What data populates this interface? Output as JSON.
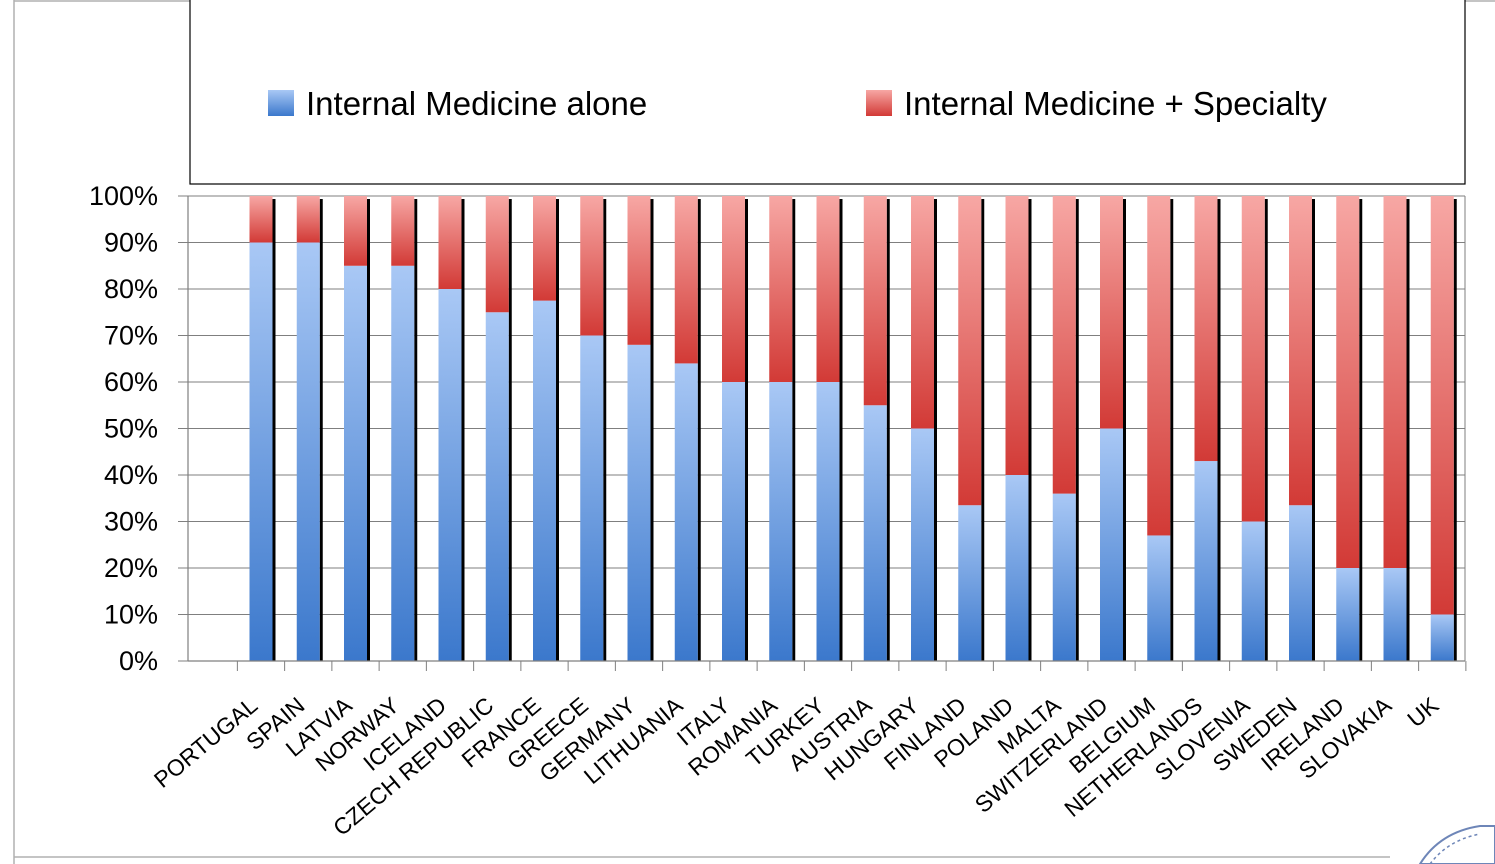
{
  "chart_data": {
    "type": "bar",
    "stacked": true,
    "percent_stacked": true,
    "categories": [
      "PORTUGAL",
      "SPAIN",
      "LATVIA",
      "NORWAY",
      "ICELAND",
      "CZECH REPUBLIC",
      "FRANCE",
      "GREECE",
      "GERMANY",
      "LITHUANIA",
      "ITALY",
      "ROMANIA",
      "TURKEY",
      "AUSTRIA",
      "HUNGARY",
      "FINLAND",
      "POLAND",
      "MALTA",
      "SWITZERLAND",
      "BELGIUM",
      "NETHERLANDS",
      "SLOVENIA",
      "SWEDEN",
      "IRELAND",
      "SLOVAKIA",
      "UK"
    ],
    "series": [
      {
        "name": "Internal Medicine alone",
        "color": "#4f81bd",
        "values": [
          90,
          90,
          85,
          85,
          80,
          75,
          77.5,
          70,
          68,
          64,
          60,
          60,
          60,
          55,
          50,
          33.5,
          40,
          36,
          50,
          27,
          43,
          30,
          33.5,
          20,
          20,
          10
        ]
      },
      {
        "name": "Internal Medicine + Specialty",
        "color": "#c0504d",
        "values": [
          10,
          10,
          15,
          15,
          20,
          25,
          22.5,
          30,
          32,
          36,
          40,
          40,
          40,
          45,
          50,
          66.5,
          60,
          64,
          50,
          73,
          57,
          70,
          66.5,
          80,
          80,
          90
        ]
      }
    ],
    "y_ticks": [
      "0%",
      "10%",
      "20%",
      "30%",
      "40%",
      "50%",
      "60%",
      "70%",
      "80%",
      "90%",
      "100%"
    ],
    "ylim": [
      0,
      100
    ],
    "grid": true,
    "legend_position": "top"
  }
}
